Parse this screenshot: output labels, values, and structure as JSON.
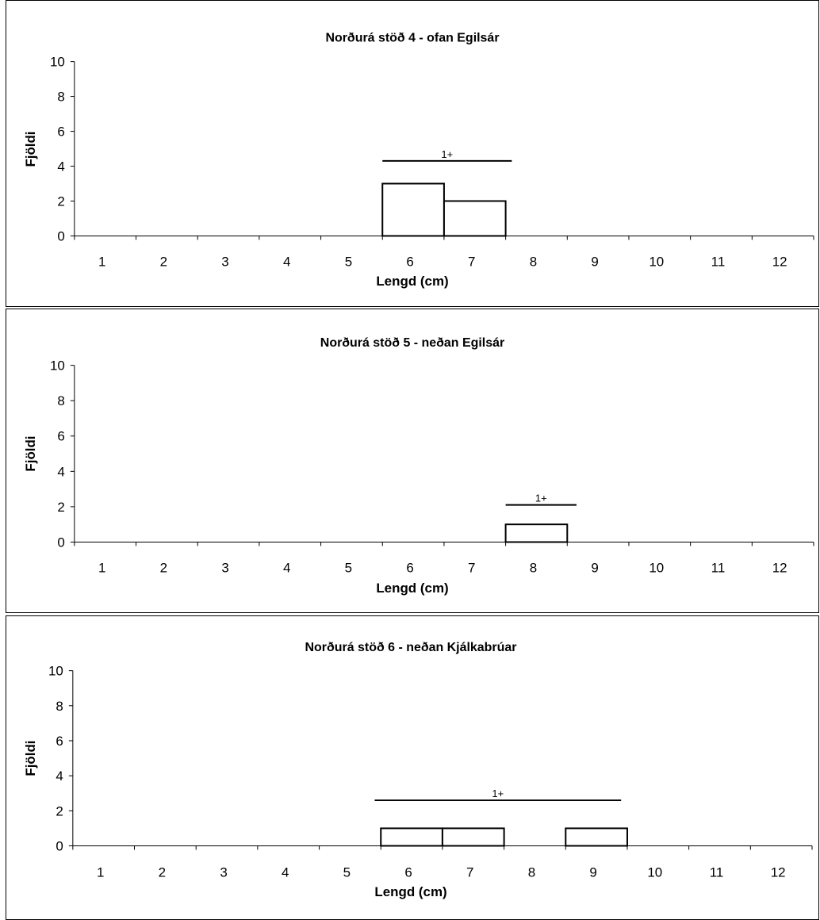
{
  "chart_data": [
    {
      "type": "bar",
      "title": "Norðurá stöð 4 - ofan Egilsár",
      "xlabel": "Lengd (cm)",
      "ylabel": "Fjöldi",
      "categories": [
        "1",
        "2",
        "3",
        "4",
        "5",
        "6",
        "7",
        "8",
        "9",
        "10",
        "11",
        "12"
      ],
      "values": [
        0,
        0,
        0,
        0,
        0,
        3,
        2,
        0,
        0,
        0,
        0,
        0
      ],
      "ylim": [
        0,
        10
      ],
      "yticks": [
        "0",
        "2",
        "4",
        "6",
        "8",
        "10"
      ],
      "grid": false,
      "age_group": {
        "label": "1+",
        "from": 5.5,
        "to": 7.6,
        "y": 4.3
      }
    },
    {
      "type": "bar",
      "title": "Norðurá stöð 5 - neðan Egilsár",
      "xlabel": "Lengd (cm)",
      "ylabel": "Fjöldi",
      "categories": [
        "1",
        "2",
        "3",
        "4",
        "5",
        "6",
        "7",
        "8",
        "9",
        "10",
        "11",
        "12"
      ],
      "values": [
        0,
        0,
        0,
        0,
        0,
        0,
        0,
        1,
        0,
        0,
        0,
        0
      ],
      "ylim": [
        0,
        10
      ],
      "yticks": [
        "0",
        "2",
        "4",
        "6",
        "8",
        "10"
      ],
      "grid": false,
      "age_group": {
        "label": "1+",
        "from": 7.5,
        "to": 8.65,
        "y": 2.1
      }
    },
    {
      "type": "bar",
      "title": "Norðurá stöð 6 - neðan Kjálkabrúar",
      "xlabel": "Lengd (cm)",
      "ylabel": "Fjöldi",
      "categories": [
        "1",
        "2",
        "3",
        "4",
        "5",
        "6",
        "7",
        "8",
        "9",
        "10",
        "11",
        "12"
      ],
      "values": [
        0,
        0,
        0,
        0,
        0,
        1,
        1,
        0,
        1,
        0,
        0,
        0
      ],
      "ylim": [
        0,
        10
      ],
      "yticks": [
        "0",
        "2",
        "4",
        "6",
        "8",
        "10"
      ],
      "grid": false,
      "age_group": {
        "label": "1+",
        "from": 5.4,
        "to": 9.4,
        "y": 2.6
      }
    }
  ]
}
